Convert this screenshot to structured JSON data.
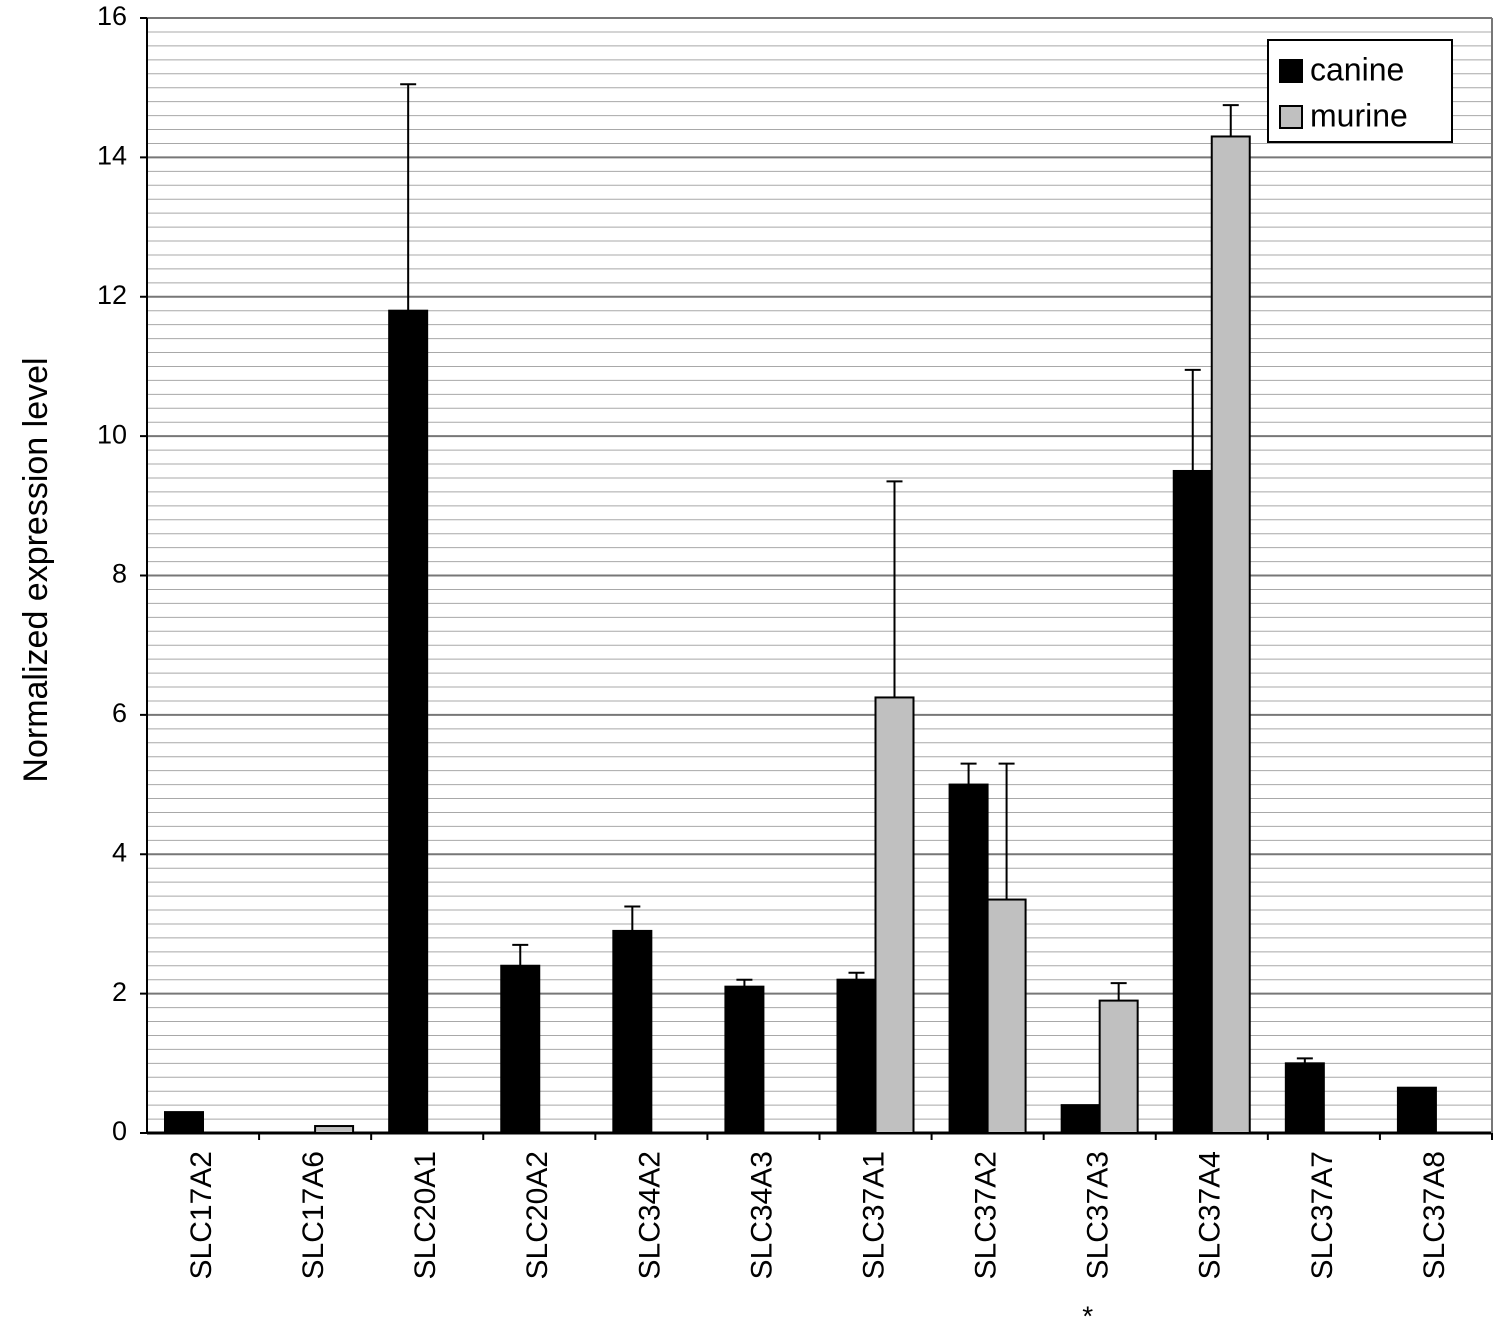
{
  "chart_data": {
    "type": "bar",
    "y_label": "Normalized  expression  level",
    "categories": [
      "SLC17A2",
      "SLC17A6",
      "SLC20A1",
      "SLC20A2",
      "SLC34A2",
      "SLC34A3",
      "SLC37A1",
      "SLC37A2",
      "SLC37A3",
      "SLC37A4",
      "SLC37A7",
      "SLC37A8"
    ],
    "series": [
      {
        "name": "canine",
        "color": "#000000",
        "values": [
          0.3,
          null,
          11.8,
          2.4,
          2.9,
          2.1,
          2.2,
          5.0,
          0.4,
          9.5,
          1.0,
          0.65
        ],
        "errors": [
          null,
          null,
          3.25,
          0.3,
          0.35,
          0.1,
          0.1,
          0.3,
          null,
          1.45,
          0.07,
          null
        ]
      },
      {
        "name": "murine",
        "color": "#c0c0c0",
        "values": [
          null,
          0.1,
          null,
          null,
          null,
          null,
          6.25,
          3.35,
          1.9,
          14.3,
          null,
          null
        ],
        "errors": [
          null,
          null,
          null,
          null,
          null,
          null,
          3.1,
          1.95,
          0.25,
          0.45,
          null,
          null
        ]
      }
    ],
    "annotation": "*",
    "ylim": [
      0,
      16
    ],
    "yticks": [
      0,
      2,
      4,
      6,
      8,
      10,
      12,
      14,
      16
    ],
    "grid": true,
    "minor_grid_divisions": 10,
    "legend": "upper right"
  }
}
